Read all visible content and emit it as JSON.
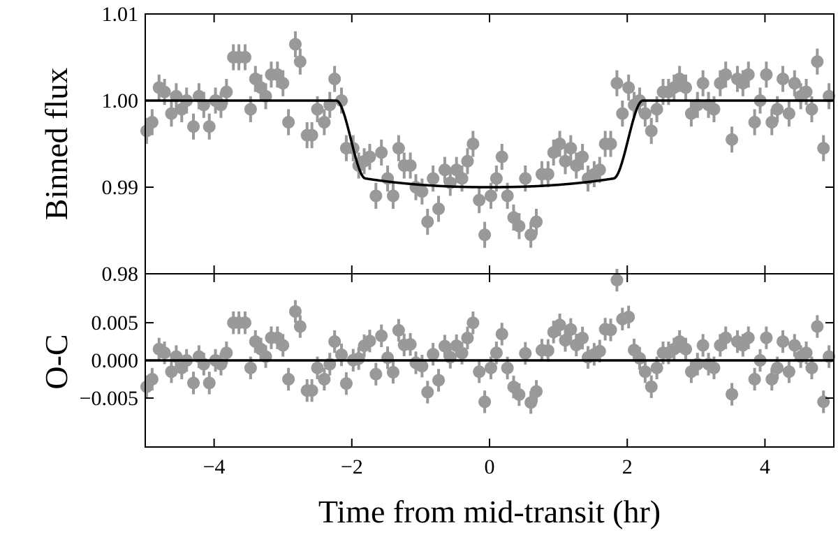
{
  "chart_data": [
    {
      "type": "scatter",
      "panel": "top",
      "xlabel": "",
      "ylabel": "Binned flux",
      "xlim": [
        -5,
        5
      ],
      "ylim": [
        0.98,
        1.01
      ],
      "yticks": [
        0.98,
        0.99,
        1.0,
        1.01
      ],
      "ytick_labels": [
        "0.98",
        "0.99",
        "1.00",
        "1.01"
      ],
      "xticks": [
        -4,
        -2,
        0,
        2,
        4
      ],
      "grid": false,
      "point_color": "#999999",
      "model_color": "#000000",
      "series": [
        {
          "kind": "data",
          "x": [
            -4.98,
            -4.9,
            -4.8,
            -4.72,
            -4.62,
            -4.55,
            -4.47,
            -4.4,
            -4.3,
            -4.22,
            -4.15,
            -4.07,
            -3.98,
            -3.9,
            -3.82,
            -3.72,
            -3.64,
            -3.55,
            -3.47,
            -3.4,
            -3.32,
            -3.25,
            -3.17,
            -3.08,
            -3.0,
            -2.92,
            -2.82,
            -2.75,
            -2.65,
            -2.58,
            -2.5,
            -2.4,
            -2.32,
            -2.25,
            -2.15,
            -2.08,
            -1.98,
            -1.9,
            -1.82,
            -1.74,
            -1.65,
            -1.57,
            -1.48,
            -1.4,
            -1.32,
            -1.24,
            -1.15,
            -1.07,
            -0.98,
            -0.9,
            -0.82,
            -0.74,
            -0.65,
            -0.57,
            -0.48,
            -0.4,
            -0.32,
            -0.24,
            -0.15,
            -0.07,
            0.02,
            0.1,
            0.18,
            0.26,
            0.35,
            0.43,
            0.52,
            0.6,
            0.68,
            0.76,
            0.85,
            0.93,
            1.02,
            1.1,
            1.18,
            1.26,
            1.35,
            1.43,
            1.52,
            1.6,
            1.68,
            1.76,
            1.85,
            1.93,
            2.02,
            2.1,
            2.18,
            2.26,
            2.35,
            2.43,
            2.52,
            2.6,
            2.68,
            2.76,
            2.85,
            2.93,
            3.02,
            3.1,
            3.18,
            3.26,
            3.35,
            3.43,
            3.52,
            3.6,
            3.68,
            3.76,
            3.85,
            3.93,
            4.02,
            4.1,
            4.18,
            4.26,
            4.35,
            4.43,
            4.52,
            4.6,
            4.68,
            4.76,
            4.85,
            4.93
          ],
          "y": [
            0.9965,
            0.9975,
            1.0015,
            1.001,
            0.9985,
            1.0005,
            0.999,
            1.0,
            0.997,
            1.0005,
            0.9995,
            0.997,
            1.0,
            0.9995,
            1.001,
            1.005,
            1.005,
            1.005,
            0.999,
            1.0025,
            1.0015,
            1.0005,
            1.003,
            1.003,
            1.002,
            0.9975,
            1.0065,
            1.0045,
            0.996,
            0.996,
            0.999,
            0.9975,
            0.9995,
            1.0025,
            1.0,
            0.9945,
            0.9945,
            0.9925,
            0.993,
            0.9935,
            0.989,
            0.994,
            0.991,
            0.989,
            0.9945,
            0.9925,
            0.9925,
            0.99,
            0.9895,
            0.986,
            0.991,
            0.9875,
            0.992,
            0.9905,
            0.992,
            0.991,
            0.993,
            0.995,
            0.9885,
            0.9845,
            0.989,
            0.991,
            0.9935,
            0.989,
            0.9865,
            0.9855,
            0.991,
            0.9845,
            0.986,
            0.9915,
            0.9915,
            0.994,
            0.995,
            0.993,
            0.9945,
            0.9925,
            0.9935,
            0.991,
            0.9915,
            0.992,
            0.995,
            0.995,
            1.002,
            0.9985,
            1.0015,
            0.9995,
            1.0,
            0.9985,
            0.9965,
            0.999,
            1.001,
            1.001,
            1.0015,
            1.0025,
            1.0015,
            0.9985,
            0.9995,
            1.002,
            0.9995,
            0.999,
            1.002,
            1.003,
            0.9955,
            1.0025,
            1.002,
            1.003,
            0.9975,
            1.0,
            1.003,
            0.9975,
            0.999,
            1.0025,
            0.9985,
            1.002,
            1.0005,
            1.001,
            0.999,
            1.0045,
            0.9945,
            1.0005
          ],
          "yerr": 0.0015
        },
        {
          "kind": "model",
          "name": "",
          "shape": "transit",
          "depth": 0.01,
          "t14_hr": 4.45,
          "t23_hr": 3.6
        }
      ]
    },
    {
      "type": "scatter",
      "panel": "bottom",
      "xlabel": "Time from mid-transit (hr)",
      "ylabel": "O-C",
      "xlim": [
        -5,
        5
      ],
      "ylim": [
        -0.0115,
        0.0115
      ],
      "yticks": [
        -0.005,
        0.0,
        0.005
      ],
      "ytick_labels": [
        "−0.005",
        "0.000",
        "0.005"
      ],
      "xticks": [
        -4,
        -2,
        0,
        2,
        4
      ],
      "xtick_labels": [
        "−4",
        "−2",
        "0",
        "2",
        "4"
      ],
      "zero_line": 0.0,
      "note": "residuals = top data minus model",
      "yerr": 0.0015
    }
  ]
}
